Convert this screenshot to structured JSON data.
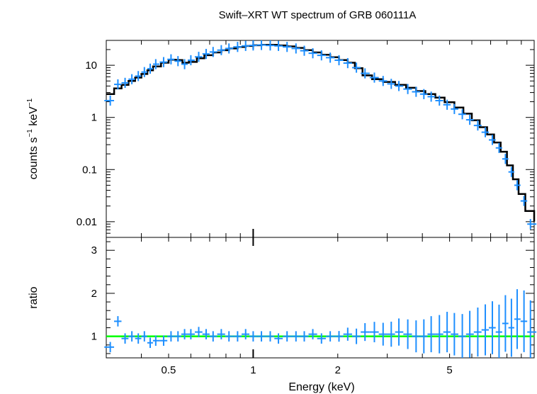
{
  "chart_data": {
    "type": "scatter",
    "title": "Swift–XRT WT spectrum of GRB 060111A",
    "xlabel": "Energy (keV)",
    "xscale": "log",
    "xlim": [
      0.3,
      10
    ],
    "x_ticks": [
      {
        "value": 0.5,
        "label": "0.5"
      },
      {
        "value": 1,
        "label": "1"
      },
      {
        "value": 2,
        "label": "2"
      },
      {
        "value": 5,
        "label": "5"
      }
    ],
    "panels": [
      {
        "name": "spectrum",
        "ylabel_main": "counts s",
        "ylabel_sup1": "−1",
        "ylabel_mid": " keV",
        "ylabel_sup2": "−1",
        "yscale": "log",
        "ylim": [
          0.005,
          30
        ],
        "y_ticks": [
          {
            "value": 10,
            "label": "10"
          },
          {
            "value": 1,
            "label": "1"
          },
          {
            "value": 0.1,
            "label": "0.1"
          },
          {
            "value": 0.01,
            "label": "0.01"
          }
        ],
        "data_color": "#1e8fff",
        "model_color": "#000000",
        "data": [
          [
            0.31,
            2.1
          ],
          [
            0.33,
            4.3
          ],
          [
            0.35,
            4.6
          ],
          [
            0.37,
            5.4
          ],
          [
            0.39,
            6.2
          ],
          [
            0.41,
            7.4
          ],
          [
            0.43,
            8.6
          ],
          [
            0.45,
            10.5
          ],
          [
            0.48,
            11.5
          ],
          [
            0.51,
            13.0
          ],
          [
            0.54,
            12.0
          ],
          [
            0.57,
            10.5
          ],
          [
            0.6,
            12.5
          ],
          [
            0.64,
            14.5
          ],
          [
            0.68,
            16.5
          ],
          [
            0.72,
            18.0
          ],
          [
            0.77,
            19.5
          ],
          [
            0.82,
            21.0
          ],
          [
            0.88,
            22.5
          ],
          [
            0.94,
            23.5
          ],
          [
            1.0,
            24.0
          ],
          [
            1.07,
            24.5
          ],
          [
            1.15,
            24.0
          ],
          [
            1.23,
            23.5
          ],
          [
            1.32,
            22.5
          ],
          [
            1.42,
            21.0
          ],
          [
            1.52,
            19.0
          ],
          [
            1.63,
            17.0
          ],
          [
            1.75,
            15.5
          ],
          [
            1.88,
            14.0
          ],
          [
            2.02,
            12.5
          ],
          [
            2.17,
            11.0
          ],
          [
            2.33,
            9.0
          ],
          [
            2.5,
            7.0
          ],
          [
            2.7,
            5.8
          ],
          [
            2.9,
            5.0
          ],
          [
            3.1,
            4.4
          ],
          [
            3.3,
            4.0
          ],
          [
            3.55,
            3.5
          ],
          [
            3.8,
            3.1
          ],
          [
            4.05,
            2.8
          ],
          [
            4.3,
            2.5
          ],
          [
            4.6,
            2.1
          ],
          [
            4.9,
            1.75
          ],
          [
            5.2,
            1.45
          ],
          [
            5.55,
            1.15
          ],
          [
            5.9,
            0.9
          ],
          [
            6.3,
            0.7
          ],
          [
            6.7,
            0.52
          ],
          [
            7.1,
            0.37
          ],
          [
            7.5,
            0.26
          ],
          [
            7.9,
            0.16
          ],
          [
            8.3,
            0.09
          ],
          [
            8.7,
            0.05
          ],
          [
            9.2,
            0.025
          ],
          [
            9.7,
            0.009
          ]
        ],
        "model": [
          [
            0.3,
            2.8
          ],
          [
            0.32,
            3.6
          ],
          [
            0.34,
            4.2
          ],
          [
            0.36,
            5.0
          ],
          [
            0.38,
            5.8
          ],
          [
            0.4,
            6.8
          ],
          [
            0.42,
            8.0
          ],
          [
            0.44,
            9.5
          ],
          [
            0.47,
            11.2
          ],
          [
            0.5,
            12.8
          ],
          [
            0.53,
            12.6
          ],
          [
            0.56,
            11.2
          ],
          [
            0.59,
            11.6
          ],
          [
            0.63,
            13.6
          ],
          [
            0.67,
            15.6
          ],
          [
            0.72,
            17.6
          ],
          [
            0.77,
            19.4
          ],
          [
            0.82,
            21.0
          ],
          [
            0.88,
            22.4
          ],
          [
            0.94,
            23.4
          ],
          [
            1.0,
            24.2
          ],
          [
            1.07,
            24.6
          ],
          [
            1.15,
            24.6
          ],
          [
            1.23,
            24.0
          ],
          [
            1.32,
            23.0
          ],
          [
            1.42,
            21.5
          ],
          [
            1.52,
            19.5
          ],
          [
            1.63,
            17.6
          ],
          [
            1.75,
            15.9
          ],
          [
            1.88,
            14.3
          ],
          [
            2.02,
            12.6
          ],
          [
            2.17,
            11.2
          ],
          [
            2.3,
            8.8
          ],
          [
            2.45,
            6.4
          ],
          [
            2.65,
            5.4
          ],
          [
            2.9,
            4.8
          ],
          [
            3.2,
            4.2
          ],
          [
            3.5,
            3.7
          ],
          [
            3.8,
            3.2
          ],
          [
            4.1,
            2.8
          ],
          [
            4.45,
            2.4
          ],
          [
            4.8,
            1.95
          ],
          [
            5.2,
            1.55
          ],
          [
            5.6,
            1.18
          ],
          [
            6.0,
            0.88
          ],
          [
            6.4,
            0.65
          ],
          [
            6.8,
            0.47
          ],
          [
            7.2,
            0.33
          ],
          [
            7.6,
            0.22
          ],
          [
            8.0,
            0.12
          ],
          [
            8.4,
            0.065
          ],
          [
            8.8,
            0.034
          ],
          [
            9.3,
            0.016
          ],
          [
            10.0,
            0.01
          ]
        ]
      },
      {
        "name": "ratio",
        "ylabel": "ratio",
        "yscale": "linear",
        "ylim": [
          0.5,
          3.3
        ],
        "y_ticks": [
          {
            "value": 1,
            "label": "1"
          },
          {
            "value": 2,
            "label": "2"
          },
          {
            "value": 3,
            "label": "3"
          }
        ],
        "data_color": "#1e8fff",
        "reference_line": {
          "y": 1,
          "color": "#00ff00"
        },
        "data": [
          [
            0.31,
            0.75
          ],
          [
            0.33,
            1.35
          ],
          [
            0.35,
            0.95
          ],
          [
            0.37,
            1.0
          ],
          [
            0.39,
            0.95
          ],
          [
            0.41,
            1.0
          ],
          [
            0.43,
            0.85
          ],
          [
            0.45,
            0.9
          ],
          [
            0.48,
            0.9
          ],
          [
            0.51,
            1.0
          ],
          [
            0.54,
            1.0
          ],
          [
            0.57,
            1.05
          ],
          [
            0.6,
            1.05
          ],
          [
            0.64,
            1.1
          ],
          [
            0.68,
            1.05
          ],
          [
            0.72,
            1.0
          ],
          [
            0.77,
            1.05
          ],
          [
            0.82,
            1.0
          ],
          [
            0.88,
            1.0
          ],
          [
            0.94,
            1.05
          ],
          [
            1.0,
            1.0
          ],
          [
            1.07,
            1.0
          ],
          [
            1.15,
            1.0
          ],
          [
            1.23,
            0.95
          ],
          [
            1.32,
            1.0
          ],
          [
            1.42,
            1.0
          ],
          [
            1.52,
            1.0
          ],
          [
            1.63,
            1.05
          ],
          [
            1.75,
            0.95
          ],
          [
            1.88,
            1.0
          ],
          [
            2.02,
            1.0
          ],
          [
            2.17,
            1.05
          ],
          [
            2.33,
            1.0
          ],
          [
            2.5,
            1.1
          ],
          [
            2.7,
            1.1
          ],
          [
            2.9,
            1.05
          ],
          [
            3.1,
            1.05
          ],
          [
            3.3,
            1.1
          ],
          [
            3.55,
            1.05
          ],
          [
            3.8,
            1.0
          ],
          [
            4.05,
            1.0
          ],
          [
            4.3,
            1.05
          ],
          [
            4.6,
            1.05
          ],
          [
            4.9,
            1.1
          ],
          [
            5.2,
            1.05
          ],
          [
            5.55,
            1.0
          ],
          [
            5.9,
            1.05
          ],
          [
            6.3,
            1.1
          ],
          [
            6.7,
            1.15
          ],
          [
            7.1,
            1.2
          ],
          [
            7.5,
            1.1
          ],
          [
            7.9,
            1.3
          ],
          [
            8.3,
            1.2
          ],
          [
            8.7,
            1.4
          ],
          [
            9.2,
            1.35
          ],
          [
            9.7,
            1.1
          ]
        ]
      }
    ]
  }
}
